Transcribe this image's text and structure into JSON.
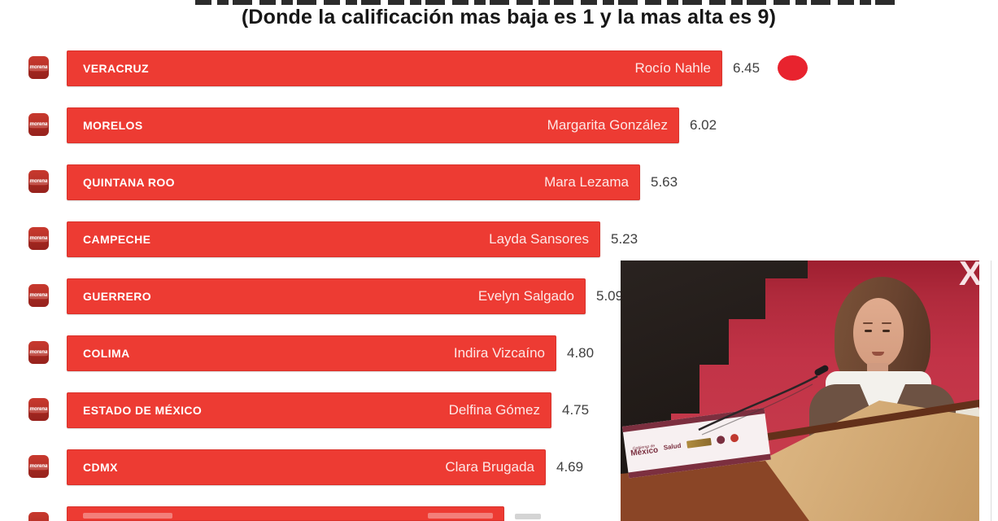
{
  "page": {
    "subtitle": "(Donde la calificación mas baja es 1 y la mas alta es 9)"
  },
  "chart_data": {
    "type": "bar",
    "orientation": "horizontal",
    "title": "(cropped top line, illegible)",
    "subtitle": "(Donde la calificación mas baja es 1 y la mas alta es 9)",
    "value_range": [
      1,
      9
    ],
    "bar_color": "#ED3B33",
    "rows": [
      {
        "state": "VERACRUZ",
        "governor": "Rocío Nahle",
        "value": "6.45"
      },
      {
        "state": "MORELOS",
        "governor": "Margarita González",
        "value": "6.02"
      },
      {
        "state": "QUINTANA ROO",
        "governor": "Mara Lezama",
        "value": "5.63"
      },
      {
        "state": "CAMPECHE",
        "governor": "Layda Sansores",
        "value": "5.23"
      },
      {
        "state": "GUERRERO",
        "governor": "Evelyn Salgado",
        "value": "5.09"
      },
      {
        "state": "COLIMA",
        "governor": "Indira Vizcaíno",
        "value": "4.80"
      },
      {
        "state": "ESTADO DE MÉXICO",
        "governor": "Delfina Gómez",
        "value": "4.75"
      },
      {
        "state": "CDMX",
        "governor": "Clara Brugada",
        "value": "4.69"
      }
    ],
    "partial_row_visible": true
  },
  "icons": {
    "party_icon": "morena-logo",
    "party_icon_text": "morena",
    "highlight_dot": "red-dot"
  },
  "photo": {
    "overlay_letter": "X",
    "podium_banner": {
      "logo_line1": "Gobierno de",
      "logo_line2": "México",
      "logo_salud": "Salud"
    }
  },
  "colors": {
    "bar_red": "#ED3B33",
    "dot_red": "#E8232E",
    "value_text": "#3F3F3F",
    "photo_wall_red": "#C23347",
    "photo_dark": "#201A17"
  }
}
